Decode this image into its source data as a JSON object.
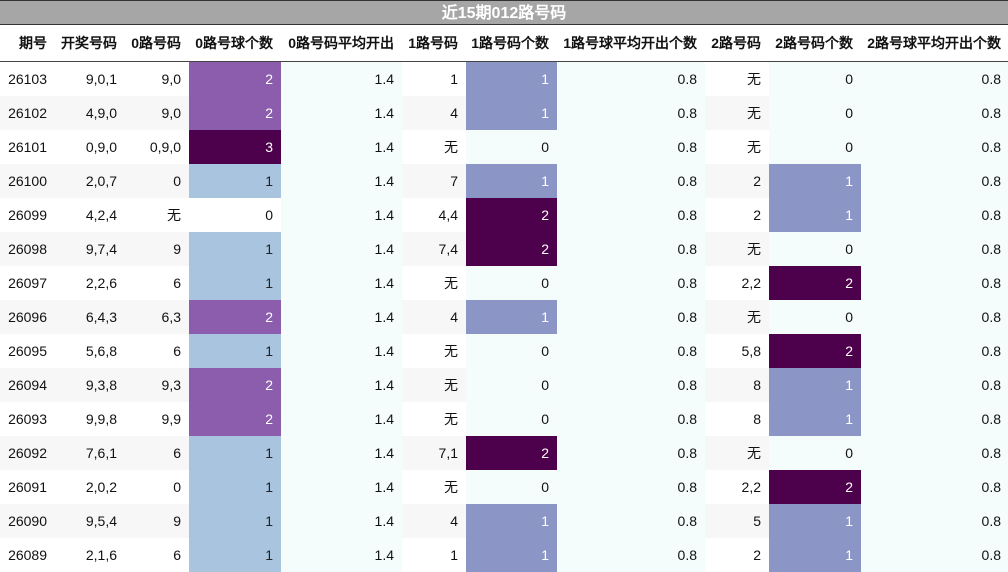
{
  "title": "近15期012路号码",
  "headers": [
    "期号",
    "开奖号码",
    "0路号码",
    "0路号球个数",
    "0路号码平均开出",
    "1路号码",
    "1路号码个数",
    "1路号球平均开出个数",
    "2路号码",
    "2路号码个数",
    "2路号球平均开出个数"
  ],
  "colors": {
    "title_bg": "#a6a6a6",
    "count_1_zero": "#a8c4de",
    "count_1": "#8c96c6",
    "count_2_zero": "#8c5cad",
    "count_2": "#4d004b",
    "count_3": "#4d004b"
  },
  "rows": [
    {
      "issue": "26103",
      "draw": "9,0,1",
      "r0": "9,0",
      "c0": "2",
      "a0": "1.4",
      "r1": "1",
      "c1": "1",
      "a1": "0.8",
      "r2": "无",
      "c2": "0",
      "a2": "0.8"
    },
    {
      "issue": "26102",
      "draw": "4,9,0",
      "r0": "9,0",
      "c0": "2",
      "a0": "1.4",
      "r1": "4",
      "c1": "1",
      "a1": "0.8",
      "r2": "无",
      "c2": "0",
      "a2": "0.8"
    },
    {
      "issue": "26101",
      "draw": "0,9,0",
      "r0": "0,9,0",
      "c0": "3",
      "a0": "1.4",
      "r1": "无",
      "c1": "0",
      "a1": "0.8",
      "r2": "无",
      "c2": "0",
      "a2": "0.8"
    },
    {
      "issue": "26100",
      "draw": "2,0,7",
      "r0": "0",
      "c0": "1",
      "a0": "1.4",
      "r1": "7",
      "c1": "1",
      "a1": "0.8",
      "r2": "2",
      "c2": "1",
      "a2": "0.8"
    },
    {
      "issue": "26099",
      "draw": "4,2,4",
      "r0": "无",
      "c0": "0",
      "a0": "1.4",
      "r1": "4,4",
      "c1": "2",
      "a1": "0.8",
      "r2": "2",
      "c2": "1",
      "a2": "0.8"
    },
    {
      "issue": "26098",
      "draw": "9,7,4",
      "r0": "9",
      "c0": "1",
      "a0": "1.4",
      "r1": "7,4",
      "c1": "2",
      "a1": "0.8",
      "r2": "无",
      "c2": "0",
      "a2": "0.8"
    },
    {
      "issue": "26097",
      "draw": "2,2,6",
      "r0": "6",
      "c0": "1",
      "a0": "1.4",
      "r1": "无",
      "c1": "0",
      "a1": "0.8",
      "r2": "2,2",
      "c2": "2",
      "a2": "0.8"
    },
    {
      "issue": "26096",
      "draw": "6,4,3",
      "r0": "6,3",
      "c0": "2",
      "a0": "1.4",
      "r1": "4",
      "c1": "1",
      "a1": "0.8",
      "r2": "无",
      "c2": "0",
      "a2": "0.8"
    },
    {
      "issue": "26095",
      "draw": "5,6,8",
      "r0": "6",
      "c0": "1",
      "a0": "1.4",
      "r1": "无",
      "c1": "0",
      "a1": "0.8",
      "r2": "5,8",
      "c2": "2",
      "a2": "0.8"
    },
    {
      "issue": "26094",
      "draw": "9,3,8",
      "r0": "9,3",
      "c0": "2",
      "a0": "1.4",
      "r1": "无",
      "c1": "0",
      "a1": "0.8",
      "r2": "8",
      "c2": "1",
      "a2": "0.8"
    },
    {
      "issue": "26093",
      "draw": "9,9,8",
      "r0": "9,9",
      "c0": "2",
      "a0": "1.4",
      "r1": "无",
      "c1": "0",
      "a1": "0.8",
      "r2": "8",
      "c2": "1",
      "a2": "0.8"
    },
    {
      "issue": "26092",
      "draw": "7,6,1",
      "r0": "6",
      "c0": "1",
      "a0": "1.4",
      "r1": "7,1",
      "c1": "2",
      "a1": "0.8",
      "r2": "无",
      "c2": "0",
      "a2": "0.8"
    },
    {
      "issue": "26091",
      "draw": "2,0,2",
      "r0": "0",
      "c0": "1",
      "a0": "1.4",
      "r1": "无",
      "c1": "0",
      "a1": "0.8",
      "r2": "2,2",
      "c2": "2",
      "a2": "0.8"
    },
    {
      "issue": "26090",
      "draw": "9,5,4",
      "r0": "9",
      "c0": "1",
      "a0": "1.4",
      "r1": "4",
      "c1": "1",
      "a1": "0.8",
      "r2": "5",
      "c2": "1",
      "a2": "0.8"
    },
    {
      "issue": "26089",
      "draw": "2,1,6",
      "r0": "6",
      "c0": "1",
      "a0": "1.4",
      "r1": "1",
      "c1": "1",
      "a1": "0.8",
      "r2": "2",
      "c2": "1",
      "a2": "0.8"
    }
  ]
}
